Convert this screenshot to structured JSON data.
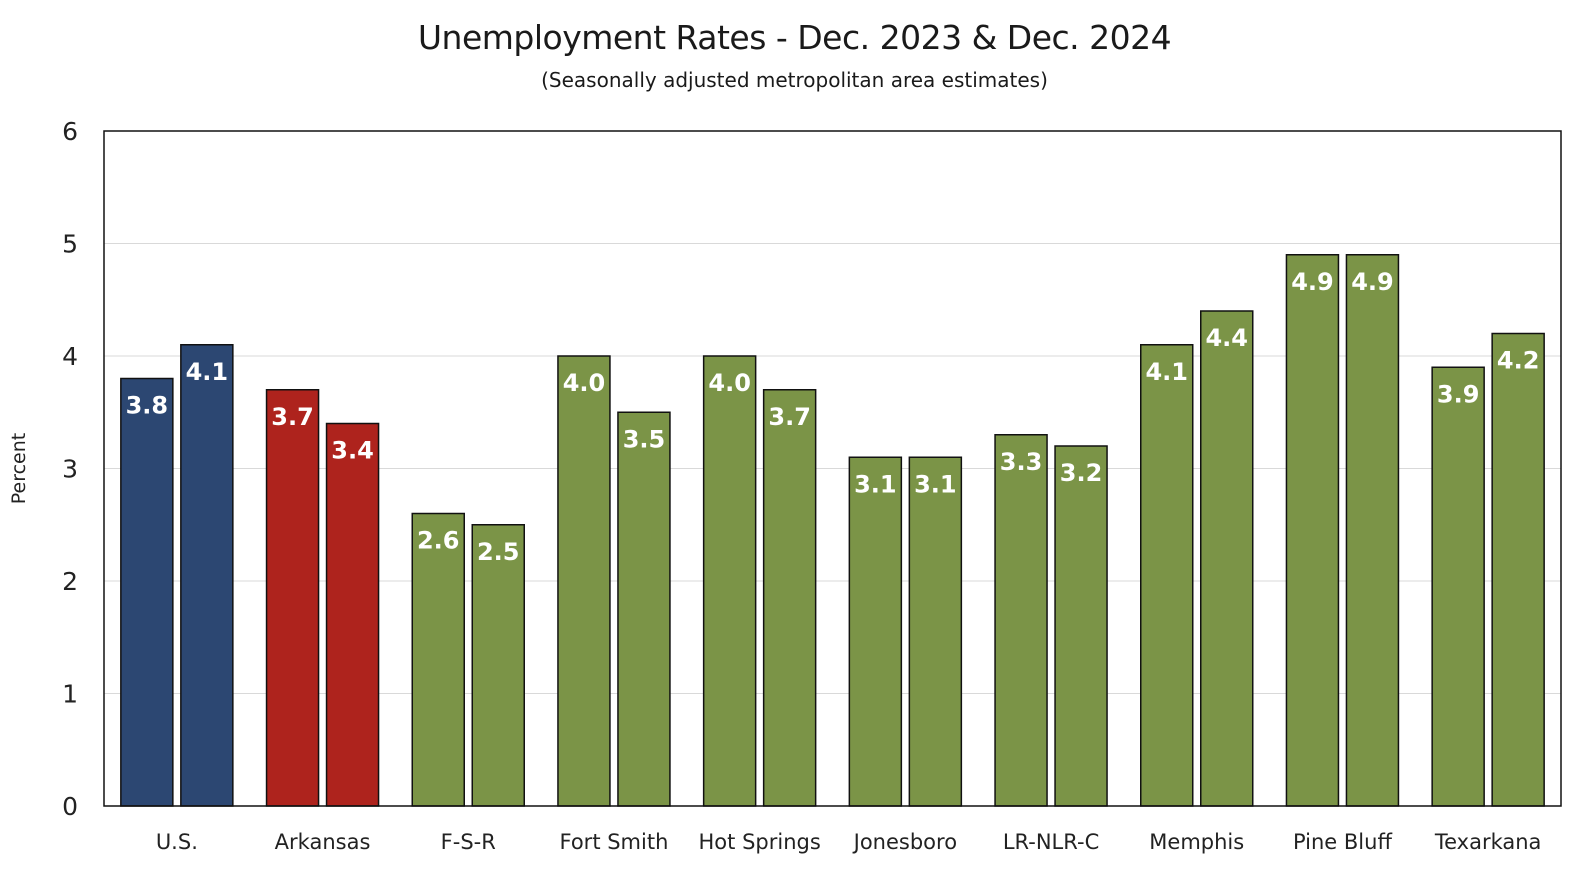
{
  "chart_data": {
    "type": "bar",
    "title": "Unemployment Rates - Dec. 2023 & Dec. 2024",
    "subtitle": "(Seasonally adjusted metropolitan  area estimates)",
    "xlabel": "",
    "ylabel": "Percent",
    "ylim": [
      0,
      6
    ],
    "yticks": [
      0,
      1,
      2,
      3,
      4,
      5,
      6
    ],
    "grid": true,
    "categories": [
      "U.S.",
      "Arkansas",
      "F-S-R",
      "Fort Smith",
      "Hot Springs",
      "Jonesboro",
      "LR-NLR-C",
      "Memphis",
      "Pine Bluff",
      "Texarkana"
    ],
    "category_colors": [
      "#2c4772",
      "#ae231d",
      "#7b9447",
      "#7b9447",
      "#7b9447",
      "#7b9447",
      "#7b9447",
      "#7b9447",
      "#7b9447",
      "#7b9447"
    ],
    "series": [
      {
        "name": "Dec. 2023",
        "values": [
          3.8,
          3.7,
          2.6,
          4.0,
          4.0,
          3.1,
          3.3,
          4.1,
          4.9,
          3.9
        ]
      },
      {
        "name": "Dec. 2024",
        "values": [
          4.1,
          3.4,
          2.5,
          3.5,
          3.7,
          3.1,
          3.2,
          4.4,
          4.9,
          4.2
        ]
      }
    ]
  }
}
